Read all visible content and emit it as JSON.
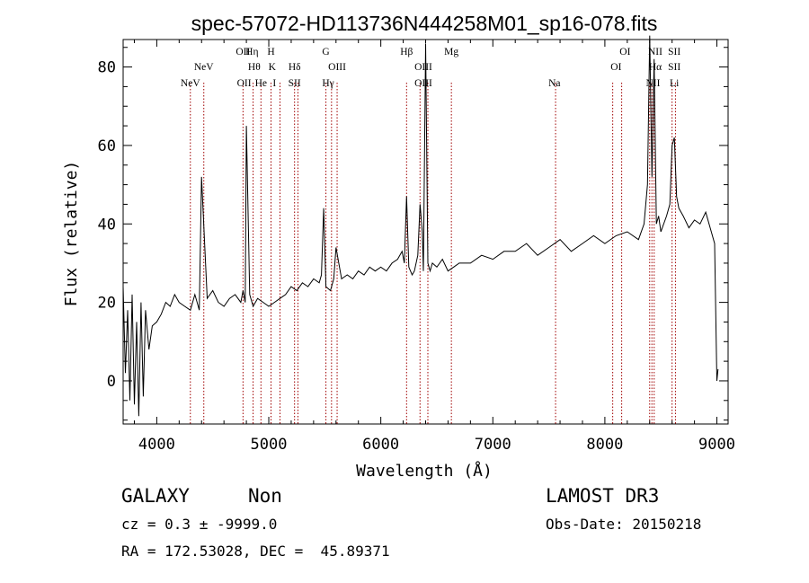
{
  "chart_data": {
    "type": "line",
    "title": "spec-57072-HD113736N444258M01_sp16-078.fits",
    "xlabel": "Wavelength (Å)",
    "ylabel": "Flux (relative)",
    "xlim": [
      3700,
      9100
    ],
    "ylim": [
      -11,
      87
    ],
    "xticks": [
      4000,
      5000,
      6000,
      7000,
      8000,
      9000
    ],
    "yticks": [
      0,
      20,
      40,
      60,
      80
    ],
    "series": [
      {
        "name": "spectrum",
        "x": [
          3700,
          3720,
          3740,
          3760,
          3780,
          3800,
          3820,
          3840,
          3860,
          3880,
          3900,
          3930,
          3960,
          4000,
          4040,
          4080,
          4120,
          4160,
          4200,
          4250,
          4300,
          4340,
          4360,
          4380,
          4400,
          4450,
          4500,
          4550,
          4600,
          4650,
          4700,
          4750,
          4770,
          4790,
          4800,
          4830,
          4860,
          4900,
          4950,
          5000,
          5050,
          5100,
          5150,
          5200,
          5250,
          5300,
          5350,
          5400,
          5450,
          5470,
          5490,
          5510,
          5550,
          5580,
          5600,
          5650,
          5700,
          5750,
          5800,
          5850,
          5900,
          5950,
          6000,
          6050,
          6100,
          6150,
          6190,
          6210,
          6230,
          6250,
          6280,
          6300,
          6330,
          6350,
          6370,
          6380,
          6400,
          6420,
          6440,
          6460,
          6500,
          6550,
          6600,
          6650,
          6700,
          6800,
          6900,
          7000,
          7100,
          7200,
          7300,
          7400,
          7500,
          7600,
          7700,
          7800,
          7900,
          8000,
          8100,
          8200,
          8300,
          8350,
          8380,
          8400,
          8420,
          8440,
          8460,
          8480,
          8500,
          8550,
          8580,
          8600,
          8620,
          8640,
          8660,
          8700,
          8750,
          8800,
          8850,
          8900,
          8950,
          8980,
          9000,
          9010
        ],
        "y": [
          24,
          2,
          18,
          -5,
          22,
          -6,
          15,
          -9,
          20,
          -4,
          18,
          8,
          14,
          15,
          17,
          20,
          19,
          22,
          20,
          19,
          18,
          22,
          20,
          18,
          52,
          21,
          23,
          20,
          19,
          21,
          22,
          20,
          23,
          20,
          65,
          22,
          19,
          21,
          20,
          19,
          20,
          21,
          22,
          24,
          23,
          25,
          24,
          26,
          25,
          27,
          44,
          24,
          23,
          26,
          34,
          26,
          27,
          26,
          28,
          27,
          29,
          28,
          29,
          28,
          30,
          31,
          33,
          30,
          47,
          29,
          27,
          28,
          32,
          45,
          38,
          28,
          86,
          30,
          28,
          30,
          29,
          31,
          28,
          29,
          30,
          30,
          32,
          31,
          33,
          33,
          35,
          32,
          34,
          36,
          33,
          35,
          37,
          35,
          37,
          38,
          36,
          40,
          50,
          88,
          52,
          82,
          40,
          42,
          38,
          42,
          45,
          60,
          62,
          47,
          44,
          42,
          39,
          41,
          40,
          43,
          38,
          35,
          0,
          3
        ]
      }
    ],
    "emission_lines": [
      {
        "wavelength": 4300,
        "label": "NeV",
        "row": 3
      },
      {
        "wavelength": 4420,
        "label": "NeV",
        "row": 2
      },
      {
        "wavelength": 4770,
        "label": "OII",
        "row": 1
      },
      {
        "wavelength": 4780,
        "label": "OII",
        "row": 3
      },
      {
        "wavelength": 4850,
        "label": "Hη",
        "row": 1
      },
      {
        "wavelength": 4870,
        "label": "Hθ",
        "row": 2
      },
      {
        "wavelength": 4930,
        "label": "He",
        "row": 3
      },
      {
        "wavelength": 5020,
        "label": "H",
        "row": 1
      },
      {
        "wavelength": 5030,
        "label": "K",
        "row": 2
      },
      {
        "wavelength": 5050,
        "label": "I",
        "row": 3
      },
      {
        "wavelength": 5230,
        "label": "Hδ",
        "row": 2
      },
      {
        "wavelength": 5230,
        "label": "SII",
        "row": 3
      },
      {
        "wavelength": 5510,
        "label": "G",
        "row": 1
      },
      {
        "wavelength": 5530,
        "label": "Hγ",
        "row": 3
      },
      {
        "wavelength": 5610,
        "label": "OIII",
        "row": 2
      },
      {
        "wavelength": 6230,
        "label": "Hβ",
        "row": 1
      },
      {
        "wavelength": 6380,
        "label": "OIII",
        "row": 2
      },
      {
        "wavelength": 6380,
        "label": "OIII",
        "row": 3
      },
      {
        "wavelength": 6630,
        "label": "Mg",
        "row": 1
      },
      {
        "wavelength": 7550,
        "label": "Na",
        "row": 3
      },
      {
        "wavelength": 8100,
        "label": "OI",
        "row": 2
      },
      {
        "wavelength": 8180,
        "label": "OI",
        "row": 1
      },
      {
        "wavelength": 8450,
        "label": "NII",
        "row": 1
      },
      {
        "wavelength": 8450,
        "label": "Hα",
        "row": 2
      },
      {
        "wavelength": 8430,
        "label": "NII",
        "row": 3
      },
      {
        "wavelength": 8620,
        "label": "SII",
        "row": 1
      },
      {
        "wavelength": 8620,
        "label": "SII",
        "row": 2
      },
      {
        "wavelength": 8620,
        "label": "Li",
        "row": 3
      }
    ],
    "marker_lines": [
      4300,
      4420,
      4770,
      4860,
      4930,
      5020,
      5100,
      5230,
      5260,
      5510,
      5560,
      5610,
      6230,
      6350,
      6420,
      6630,
      7560,
      8070,
      8150,
      8400,
      8420,
      8440,
      8600,
      8630
    ]
  },
  "info": {
    "object_class": "GALAXY",
    "subclass": "Non",
    "survey": "LAMOST DR3",
    "redshift_text": "cz = 0.3 ± -9999.0",
    "obs_date_text": "Obs-Date: 20150218",
    "coords_text": "RA = 172.53028, DEC =  45.89371"
  },
  "colors": {
    "spectrum": "#000000",
    "marker": "#a00000"
  }
}
